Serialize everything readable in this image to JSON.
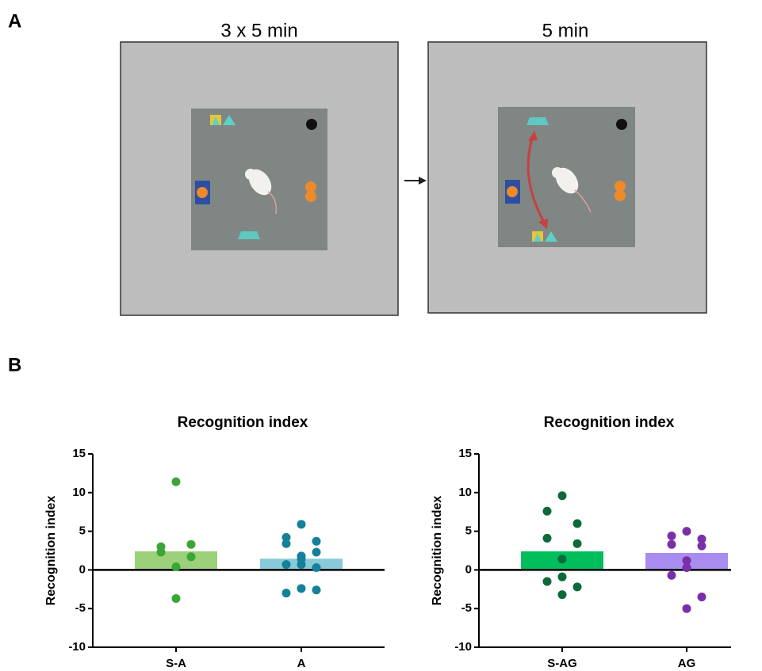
{
  "panel_labels": [
    "A",
    "B"
  ],
  "diagram": {
    "phase_labels": [
      "3 x 5 min",
      "5 min"
    ]
  },
  "chart_data": [
    {
      "type": "bar",
      "title": "Recognition index",
      "y_label": "Recognition index",
      "categories": [
        "S-A",
        "A"
      ],
      "values": [
        2.4,
        1.45
      ],
      "bar_colors": [
        "#9dd07a",
        "#88cad9"
      ],
      "point_colors": [
        "#3aa635",
        "#15809a"
      ],
      "points": [
        [
          11.4,
          3.0,
          3.3,
          2.3,
          1.7,
          0.4,
          -3.7
        ],
        [
          5.9,
          4.2,
          3.7,
          3.4,
          2.3,
          1.8,
          1.4,
          0.7,
          0.3,
          0.7,
          -3.0,
          -2.6,
          -2.4
        ]
      ],
      "ylim": [
        -10,
        15
      ],
      "yticks": [
        -10,
        -5,
        0,
        5,
        10,
        15
      ]
    },
    {
      "type": "bar",
      "title": "Recognition index",
      "y_label": "Recognition index",
      "categories": [
        "S-AG",
        "AG"
      ],
      "values": [
        2.4,
        2.2
      ],
      "bar_colors": [
        "#00be5c",
        "#a88cef"
      ],
      "point_colors": [
        "#0b6a38",
        "#7a2fa8"
      ],
      "points": [
        [
          9.6,
          7.6,
          6.0,
          4.1,
          3.4,
          1.4,
          -0.9,
          -1.5,
          -2.2,
          -3.2
        ],
        [
          5.0,
          4.4,
          4.0,
          3.3,
          3.1,
          1.2,
          0.3,
          -0.7,
          -3.5,
          -5.0
        ]
      ],
      "ylim": [
        -10,
        15
      ],
      "yticks": [
        -10,
        -5,
        0,
        5,
        10,
        15
      ]
    }
  ]
}
